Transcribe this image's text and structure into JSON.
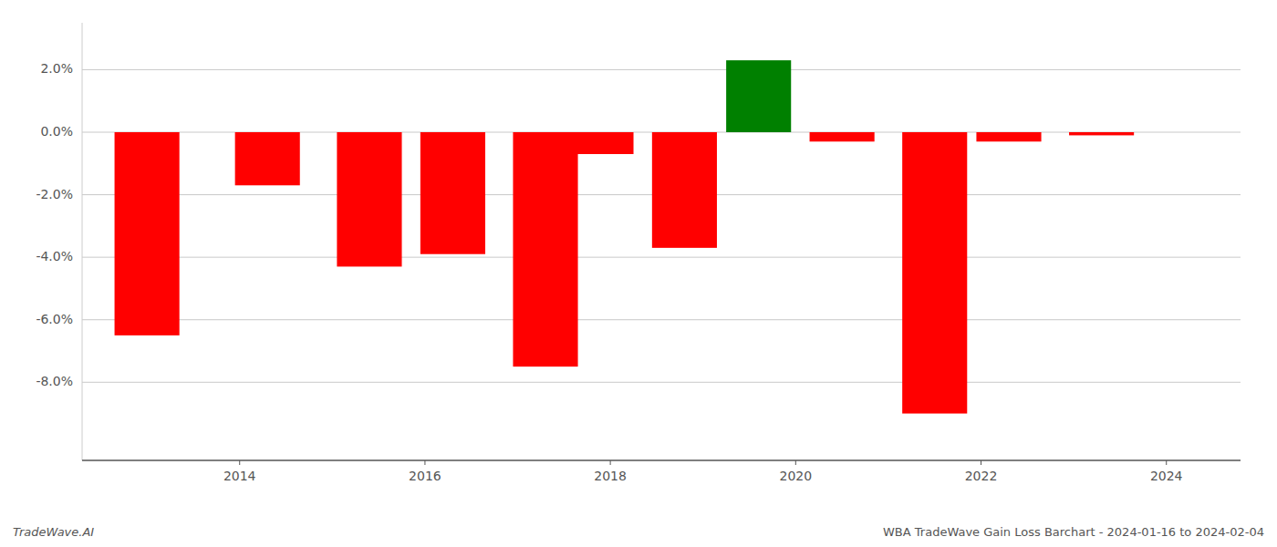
{
  "chart_data": {
    "type": "bar",
    "title": "WBA TradeWave Gain Loss Barchart - 2024-01-16 to 2024-02-04",
    "annotations": [
      "TradeWave.AI"
    ],
    "x": [
      2013.0,
      2014.3,
      2015.4,
      2016.3,
      2017.3,
      2017.9,
      2018.8,
      2019.6,
      2020.5,
      2021.5,
      2022.3,
      2023.3
    ],
    "values": [
      -0.065,
      -0.017,
      -0.043,
      -0.039,
      -0.075,
      -0.007,
      -0.037,
      0.023,
      -0.003,
      -0.09,
      -0.003,
      -0.001
    ],
    "colors": [
      "#ff0000",
      "#ff0000",
      "#ff0000",
      "#ff0000",
      "#ff0000",
      "#ff0000",
      "#ff0000",
      "#008000",
      "#ff0000",
      "#ff0000",
      "#ff0000",
      "#ff0000"
    ],
    "xlim": [
      2012.3,
      2024.8
    ],
    "xticks": [
      2014,
      2016,
      2018,
      2020,
      2022,
      2024
    ],
    "ylim": [
      -0.105,
      0.035
    ],
    "yticks": [
      {
        "value": -0.08,
        "label": "-8.0%"
      },
      {
        "value": -0.06,
        "label": "-6.0%"
      },
      {
        "value": -0.04,
        "label": "-4.0%"
      },
      {
        "value": -0.02,
        "label": "-2.0%"
      },
      {
        "value": 0.0,
        "label": "0.0%"
      },
      {
        "value": 0.02,
        "label": "2.0%"
      }
    ],
    "grid": true
  }
}
